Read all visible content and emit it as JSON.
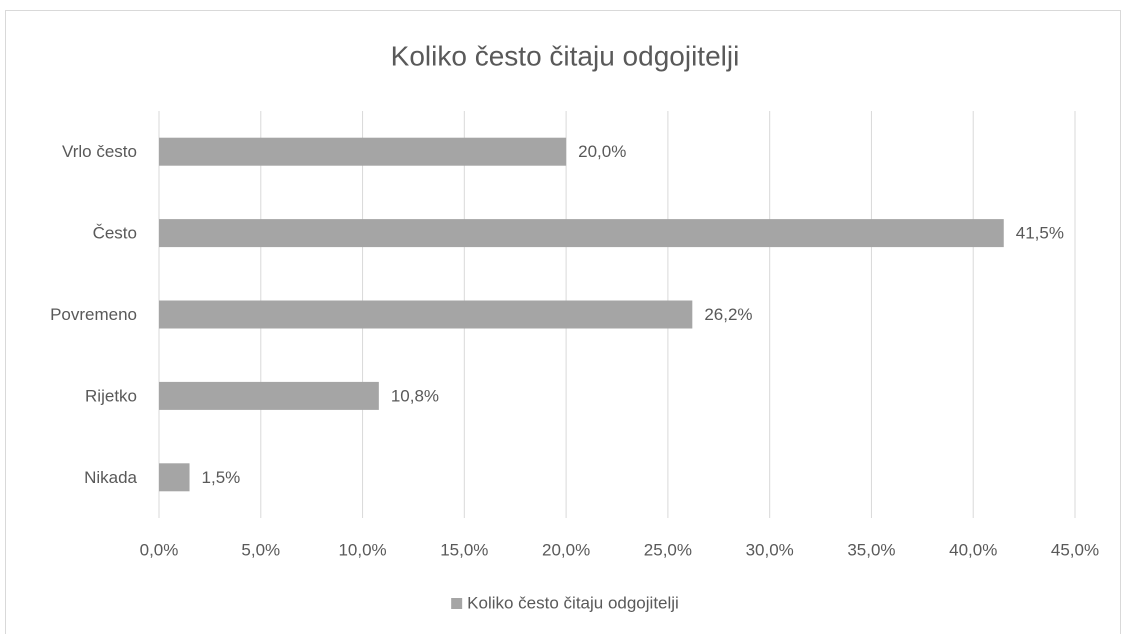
{
  "chart_data": {
    "type": "bar",
    "orientation": "horizontal",
    "title": "Koliko često čitaju odgojitelji",
    "categories": [
      "Vrlo često",
      "Često",
      "Povremeno",
      "Rijetko",
      "Nikada"
    ],
    "series": [
      {
        "name": "Koliko često čitaju odgojitelji",
        "color": "#a5a5a5",
        "values": [
          20.0,
          41.5,
          26.2,
          10.8,
          1.5
        ],
        "value_labels": [
          "20,0%",
          "41,5%",
          "26,2%",
          "10,8%",
          "1,5%"
        ]
      }
    ],
    "xlim": [
      0,
      45
    ],
    "xticks": [
      {
        "value": 0,
        "label": "0,0%"
      },
      {
        "value": 5,
        "label": "5,0%"
      },
      {
        "value": 10,
        "label": "10,0%"
      },
      {
        "value": 15,
        "label": "15,0%"
      },
      {
        "value": 20,
        "label": "20,0%"
      },
      {
        "value": 25,
        "label": "25,0%"
      },
      {
        "value": 30,
        "label": "30,0%"
      },
      {
        "value": 35,
        "label": "35,0%"
      },
      {
        "value": 40,
        "label": "40,0%"
      },
      {
        "value": 45,
        "label": "45,0%"
      }
    ],
    "grid": true,
    "legend": "bottom"
  }
}
